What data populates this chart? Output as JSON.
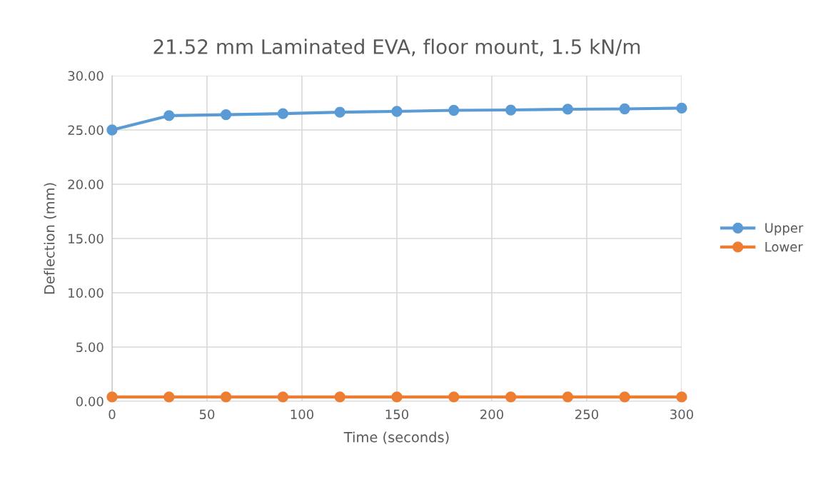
{
  "chart_data": {
    "type": "line",
    "title": "21.52 mm Laminated EVA, floor mount, 1.5 kN/m",
    "xlabel": "Time (seconds)",
    "ylabel": "Deflection (mm)",
    "x": [
      0,
      30,
      60,
      90,
      120,
      150,
      180,
      210,
      240,
      270,
      300
    ],
    "series": [
      {
        "name": "Upper",
        "color": "#5b9bd5",
        "values": [
          25.0,
          26.32,
          26.41,
          26.51,
          26.64,
          26.71,
          26.81,
          26.84,
          26.91,
          26.94,
          27.01
        ]
      },
      {
        "name": "Lower",
        "color": "#ed7d31",
        "values": [
          0.4,
          0.4,
          0.4,
          0.4,
          0.4,
          0.4,
          0.4,
          0.4,
          0.4,
          0.4,
          0.4
        ]
      }
    ],
    "xlim": [
      0,
      300
    ],
    "xticks": [
      0,
      50,
      100,
      150,
      200,
      250,
      300
    ],
    "ylim": [
      0,
      30
    ],
    "yticks": [
      {
        "value": 0,
        "label": "0.00"
      },
      {
        "value": 5,
        "label": "5.00"
      },
      {
        "value": 10,
        "label": "10.00"
      },
      {
        "value": 15,
        "label": "15.00"
      },
      {
        "value": 20,
        "label": "20.00"
      },
      {
        "value": 25,
        "label": "25.00"
      },
      {
        "value": 30,
        "label": "30.00"
      }
    ],
    "grid": true,
    "legend": "right",
    "marker": "circle",
    "line_style": "solid"
  }
}
